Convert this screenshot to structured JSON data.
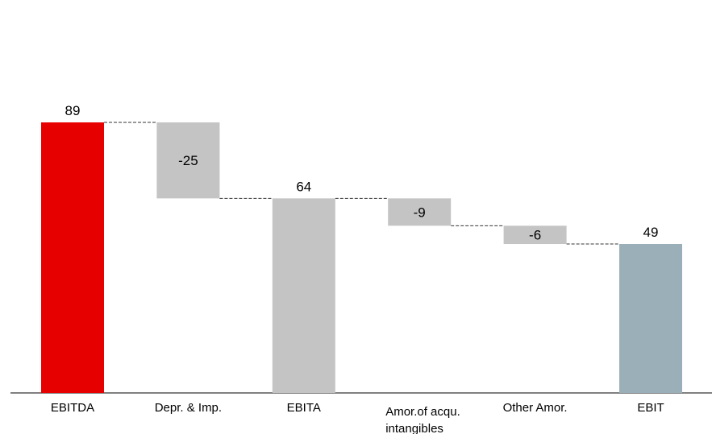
{
  "chart_data": {
    "type": "waterfall",
    "title": "",
    "xlabel": "",
    "ylabel": "",
    "ylim": [
      0,
      89
    ],
    "grid": false,
    "legend": "none",
    "categories": [
      "EBITDA",
      "Depr. & Imp.",
      "EBITA",
      "Amor.of acqu.\nintangibles",
      "Other Amor.",
      "EBIT"
    ],
    "bars": [
      {
        "category": "EBITDA",
        "label": "89",
        "kind": "total",
        "start": 0,
        "end": 89,
        "color": "#e60000"
      },
      {
        "category": "Depr. & Imp.",
        "label": "-25",
        "kind": "delta",
        "start": 89,
        "end": 64,
        "color": "#c4c4c4"
      },
      {
        "category": "EBITA",
        "label": "64",
        "kind": "total",
        "start": 0,
        "end": 64,
        "color": "#c4c4c4"
      },
      {
        "category": "Amor.of acqu.\nintangibles",
        "label": "-9",
        "kind": "delta",
        "start": 64,
        "end": 55,
        "color": "#c4c4c4"
      },
      {
        "category": "Other Amor.",
        "label": "-6",
        "kind": "delta",
        "start": 55,
        "end": 49,
        "color": "#c4c4c4"
      },
      {
        "category": "EBIT",
        "label": "49",
        "kind": "total",
        "start": 0,
        "end": 49,
        "color": "#9aafb7"
      }
    ]
  }
}
